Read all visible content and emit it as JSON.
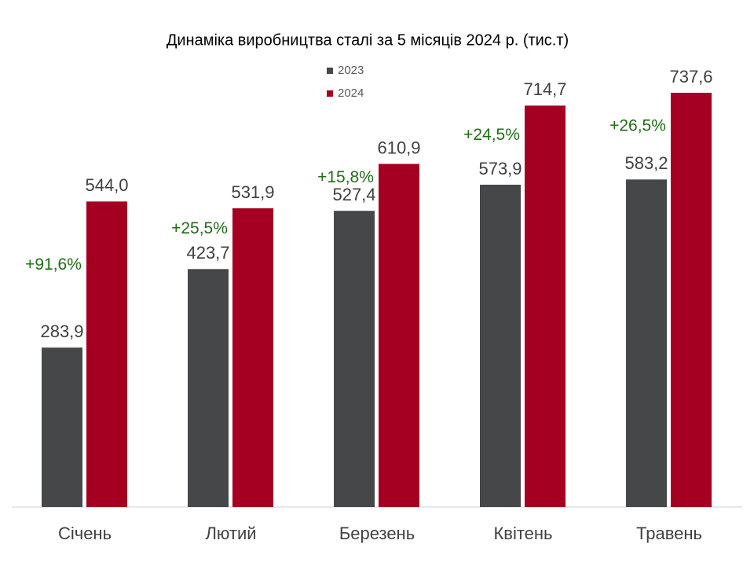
{
  "chart_data": {
    "type": "bar",
    "title": "Динаміка виробництва сталі за 5 місяців 2024 р. (тис.т)",
    "categories": [
      "Січень",
      "Лютий",
      "Березень",
      "Квітень",
      "Травень"
    ],
    "series": [
      {
        "name": "2023",
        "color": "#464749",
        "values": [
          283.9,
          423.7,
          527.4,
          573.9,
          583.2
        ],
        "value_labels": [
          "283,9",
          "423,7",
          "527,4",
          "573,9",
          "583,2"
        ]
      },
      {
        "name": "2024",
        "color": "#a50021",
        "values": [
          544.0,
          531.9,
          610.9,
          714.7,
          737.6
        ],
        "value_labels": [
          "544,0",
          "531,9",
          "610,9",
          "714,7",
          "737,6"
        ]
      }
    ],
    "annotations": [
      "+91,6%",
      "+25,5%",
      "+15,8%",
      "+24,5%",
      "+26,5%"
    ],
    "annotation_color": "#1e6e14"
  }
}
